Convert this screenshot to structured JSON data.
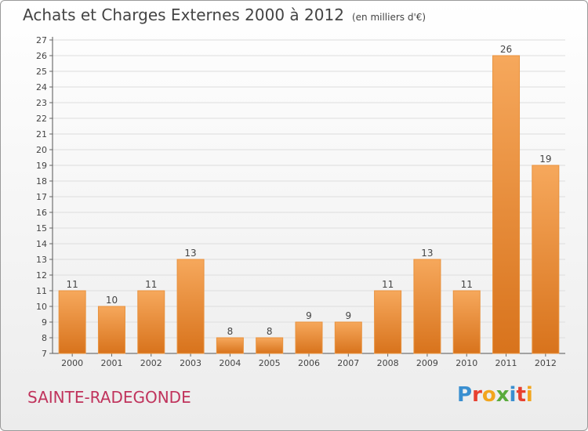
{
  "header": {
    "title": "Achats et Charges Externes 2000 à 2012",
    "unit": "(en milliers d'€)"
  },
  "footer": {
    "commune": "SAINTE-RADEGONDE",
    "brand": "Proxiti"
  },
  "colors": {
    "bar_light": "#f6a85c",
    "bar_dark": "#d8731c",
    "bar_edge": "#e8923e",
    "grid": "#dddddd",
    "text": "#444444",
    "commune": "#c0335c"
  },
  "chart_data": {
    "type": "bar",
    "title": "Achats et Charges Externes 2000 à 2012",
    "subtitle": "(en milliers d'€)",
    "categories": [
      "2000",
      "2001",
      "2002",
      "2003",
      "2004",
      "2005",
      "2006",
      "2007",
      "2008",
      "2009",
      "2010",
      "2011",
      "2012"
    ],
    "values": [
      11,
      10,
      11,
      13,
      8,
      8,
      9,
      9,
      11,
      13,
      11,
      26,
      19
    ],
    "ylim": [
      7,
      27
    ],
    "yticks": [
      7,
      8,
      9,
      10,
      11,
      12,
      13,
      14,
      15,
      16,
      17,
      18,
      19,
      20,
      21,
      22,
      23,
      24,
      25,
      26,
      27
    ],
    "grid": true,
    "data_labels": true
  }
}
